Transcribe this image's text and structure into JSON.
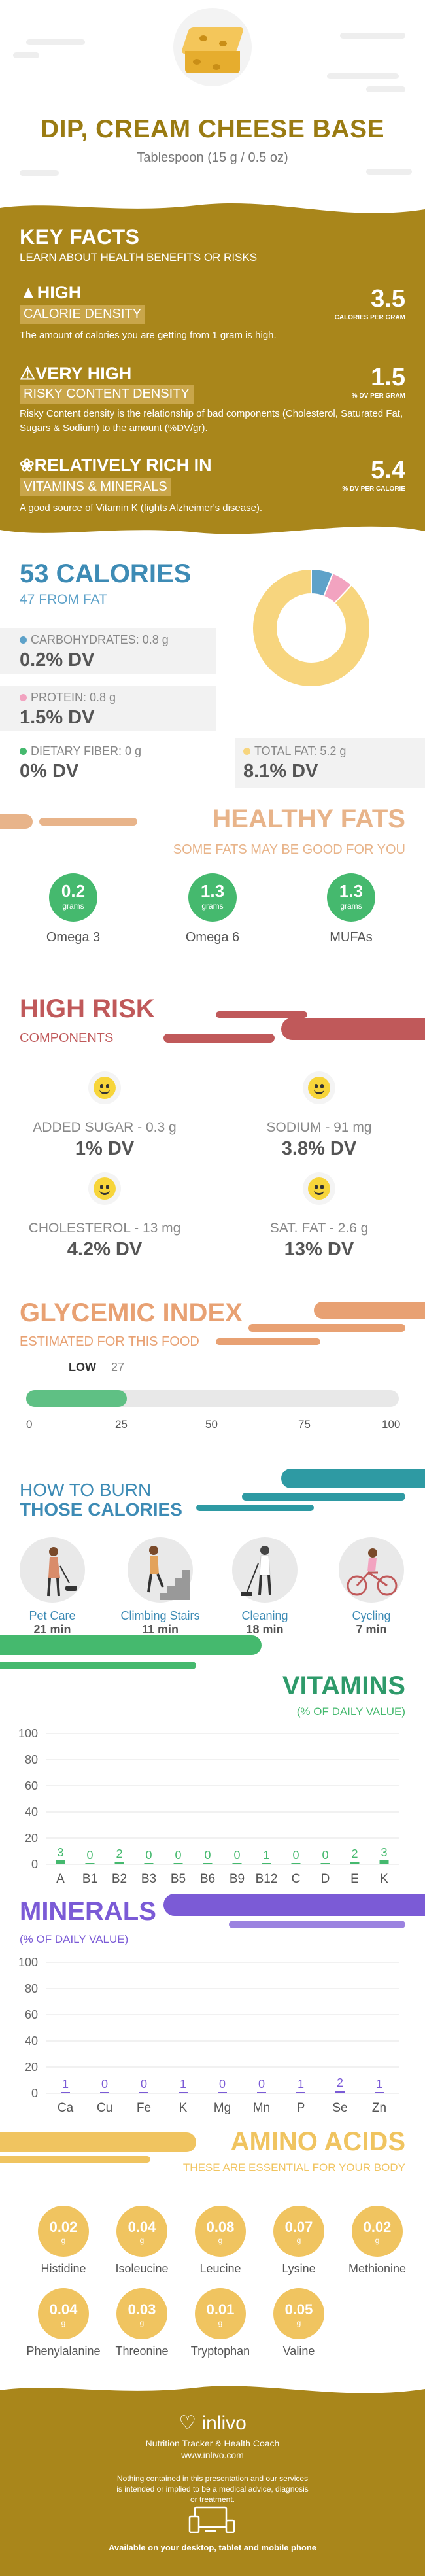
{
  "header": {
    "title": "DIP, CREAM CHEESE BASE",
    "serving": "Tablespoon (15 g / 0.5 oz)"
  },
  "key_facts": {
    "title": "KEY FACTS",
    "subtitle": "LEARN ABOUT HEALTH BENEFITS OR RISKS",
    "facts": [
      {
        "level": "HIGH",
        "label": "CALORIE DENSITY",
        "value": "3.5",
        "unit": "CALORIES PER GRAM",
        "desc": "The amount of calories you are getting from 1 gram is high.",
        "icon": "flame-icon"
      },
      {
        "level": "VERY HIGH",
        "label": "RISKY CONTENT DENSITY",
        "value": "1.5",
        "unit": "% DV PER GRAM",
        "desc": "Risky Content density is the relationship of bad components (Cholesterol, Saturated Fat, Sugars & Sodium) to the amount (%DV/gr).",
        "icon": "warning-icon"
      },
      {
        "level": "RELATIVELY RICH  IN",
        "label": "VITAMINS & MINERALS",
        "value": "5.4",
        "unit": "% DV PER CALORIE",
        "desc": "A good source of Vitamin K (fights Alzheimer's disease).",
        "icon": "leaf-icon"
      }
    ]
  },
  "calories": {
    "title": "53 CALORIES",
    "from_fat": "47 FROM FAT",
    "carbs": {
      "label": "CARBOHYDRATES: 0.8 g",
      "dv": "0.2% DV",
      "color": "#5ea2c9"
    },
    "protein": {
      "label": "PROTEIN: 0.8 g",
      "dv": "1.5% DV",
      "color": "#f2a3c0"
    },
    "fiber": {
      "label": "DIETARY FIBER: 0 g",
      "dv": "0% DV",
      "color": "#45b96e"
    },
    "fat": {
      "label": "TOTAL FAT: 5.2 g",
      "dv": "8.1% DV",
      "color": "#f7d57e"
    },
    "donut_percent": {
      "carbs": 6,
      "protein": 6,
      "fat": 88
    }
  },
  "healthy_fats": {
    "title": "HEALTHY FATS",
    "subtitle": "SOME FATS MAY BE GOOD FOR YOU",
    "items": [
      {
        "value": "0.2",
        "unit": "grams",
        "name": "Omega 3"
      },
      {
        "value": "1.3",
        "unit": "grams",
        "name": "Omega 6"
      },
      {
        "value": "1.3",
        "unit": "grams",
        "name": "MUFAs"
      }
    ]
  },
  "high_risk": {
    "title": "HIGH RISK",
    "subtitle": "COMPONENTS",
    "items": [
      {
        "label": "ADDED SUGAR - 0.3 g",
        "dv": "1% DV"
      },
      {
        "label": "SODIUM - 91 mg",
        "dv": "3.8% DV"
      },
      {
        "label": "CHOLESTEROL - 13 mg",
        "dv": "4.2% DV"
      },
      {
        "label": "SAT. FAT - 2.6 g",
        "dv": "13% DV"
      }
    ]
  },
  "glycemic": {
    "title": "GLYCEMIC INDEX",
    "subtitle": "ESTIMATED FOR THIS FOOD",
    "level": "LOW",
    "value": "27",
    "value_num": 27,
    "ticks": [
      "0",
      "25",
      "50",
      "75",
      "100"
    ]
  },
  "burn": {
    "title1": "HOW TO BURN",
    "title2": "THOSE CALORIES",
    "activities": [
      {
        "name": "Pet Care",
        "time": "21 min",
        "icon": "pet-care-icon"
      },
      {
        "name": "Climbing Stairs",
        "time": "11 min",
        "icon": "stairs-icon"
      },
      {
        "name": "Cleaning",
        "time": "18 min",
        "icon": "cleaning-icon"
      },
      {
        "name": "Cycling",
        "time": "7 min",
        "icon": "cycling-icon"
      }
    ]
  },
  "vitamins": {
    "title": "VITAMINS",
    "subtitle": "(% OF DAILY VALUE)",
    "color": "#45b96e",
    "chart_data": {
      "type": "bar",
      "categories": [
        "A",
        "B1",
        "B2",
        "B3",
        "B5",
        "B6",
        "B9",
        "B12",
        "C",
        "D",
        "E",
        "K"
      ],
      "values": [
        3,
        0,
        2,
        0,
        0,
        0,
        0,
        1,
        0,
        0,
        2,
        3
      ],
      "ylim": [
        0,
        100
      ],
      "yticks": [
        "0",
        "20",
        "40",
        "60",
        "80",
        "100"
      ]
    }
  },
  "minerals": {
    "title": "MINERALS",
    "subtitle": "(% OF DAILY VALUE)",
    "color": "#7b5bd6",
    "chart_data": {
      "type": "bar",
      "categories": [
        "Ca",
        "Cu",
        "Fe",
        "K",
        "Mg",
        "Mn",
        "P",
        "Se",
        "Zn"
      ],
      "values": [
        1,
        0,
        0,
        1,
        0,
        0,
        1,
        2,
        1
      ],
      "ylim": [
        0,
        100
      ],
      "yticks": [
        "0",
        "20",
        "40",
        "60",
        "80",
        "100"
      ]
    }
  },
  "amino": {
    "title": "AMINO ACIDS",
    "subtitle": "THESE ARE ESSENTIAL FOR YOUR BODY",
    "items": [
      {
        "value": "0.02",
        "unit": "g",
        "name": "Histidine"
      },
      {
        "value": "0.04",
        "unit": "g",
        "name": "Isoleucine"
      },
      {
        "value": "0.08",
        "unit": "g",
        "name": "Leucine"
      },
      {
        "value": "0.07",
        "unit": "g",
        "name": "Lysine"
      },
      {
        "value": "0.02",
        "unit": "g",
        "name": "Methionine"
      },
      {
        "value": "0.04",
        "unit": "g",
        "name": "Phenylalanine"
      },
      {
        "value": "0.03",
        "unit": "g",
        "name": "Threonine"
      },
      {
        "value": "0.01",
        "unit": "g",
        "name": "Tryptophan"
      },
      {
        "value": "0.05",
        "unit": "g",
        "name": "Valine"
      }
    ]
  },
  "footer": {
    "brand": "inlivo",
    "tagline": "Nutrition Tracker & Health Coach",
    "url": "www.inlivo.com",
    "disclaimer": "Nothing contained in this presentation and our services is intended or implied to be a medical advice, diagnosis or treatment.",
    "devices": "Available on your desktop, tablet and mobile phone"
  }
}
